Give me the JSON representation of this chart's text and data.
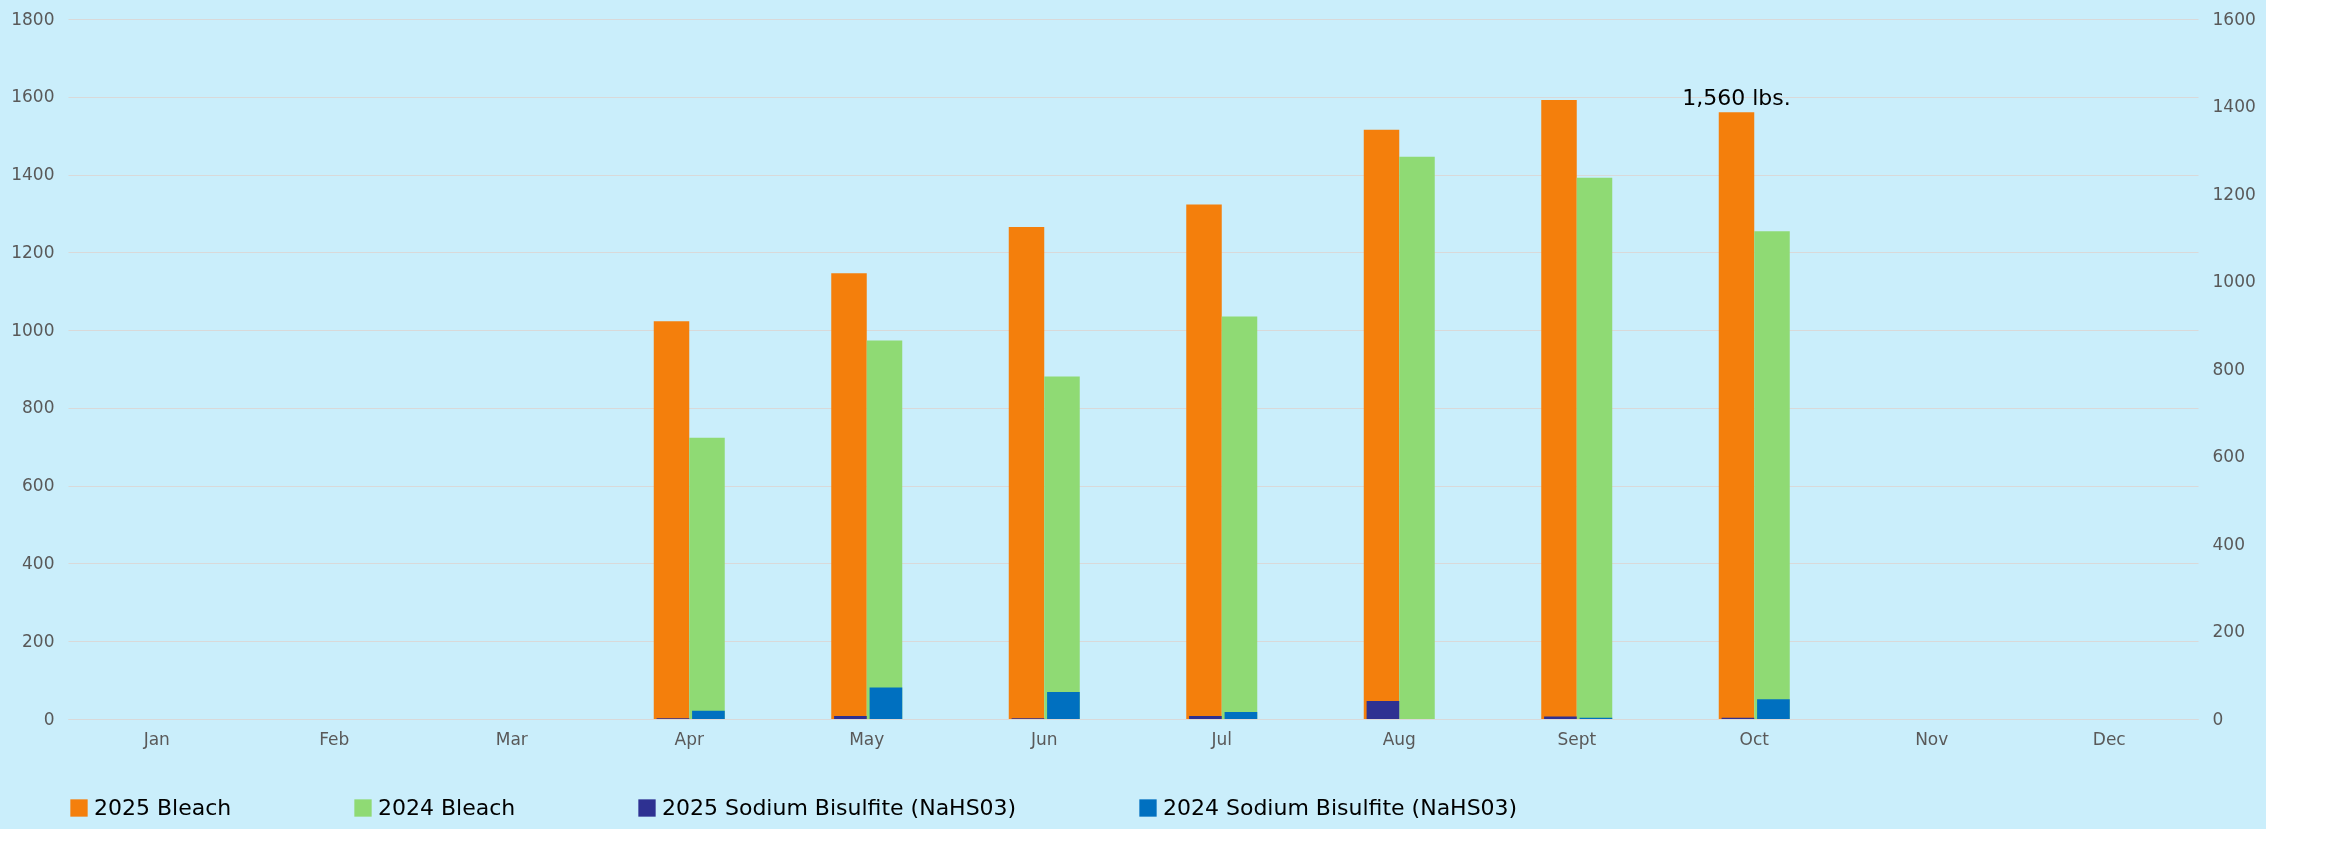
{
  "chart_data": {
    "type": "bar",
    "categories": [
      "Jan",
      "Feb",
      "Mar",
      "Apr",
      "May",
      "Jun",
      "Jul",
      "Aug",
      "Sept",
      "Oct",
      "Nov",
      "Dec"
    ],
    "series": [
      {
        "name": "2025 Bleach",
        "color": "#f47f0c",
        "values": [
          null,
          null,
          null,
          1023,
          1146,
          1265,
          1323,
          1515,
          1592,
          1560,
          null,
          null
        ]
      },
      {
        "name": "2024 Bleach",
        "color": "#8fda74",
        "values": [
          null,
          null,
          null,
          723,
          973,
          881,
          1035,
          1446,
          1392,
          1254,
          null,
          null
        ]
      },
      {
        "name": "2025 Sodium Bisulfite (NaHS03)",
        "color": "#2e3192",
        "axis": "y2",
        "values": [
          null,
          null,
          null,
          2,
          7,
          2,
          7,
          41,
          6,
          3,
          null,
          null
        ]
      },
      {
        "name": "2024 Sodium Bisulfite (NaHS03)",
        "color": "#0070c0",
        "axis": "y2",
        "values": [
          null,
          null,
          null,
          19,
          72,
          62,
          16,
          null,
          3,
          45,
          null,
          null
        ]
      }
    ],
    "ylim": [
      0,
      1800
    ],
    "yticks": [
      0,
      200,
      400,
      600,
      800,
      1000,
      1200,
      1400,
      1600,
      1800
    ],
    "y2lim": [
      0,
      1600
    ],
    "y2ticks": [
      0,
      200,
      400,
      600,
      800,
      1000,
      1200,
      1400,
      1600
    ],
    "annotations": [
      {
        "text": "1,560 lbs.",
        "x": "Oct",
        "y": 1560
      }
    ],
    "grid": "y",
    "legend": "bottom"
  }
}
